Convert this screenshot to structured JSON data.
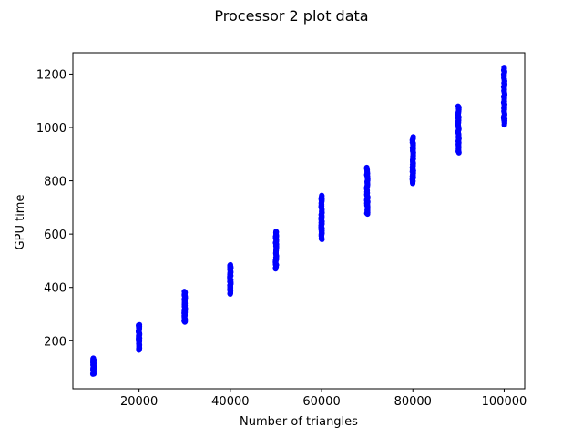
{
  "chart_data": {
    "type": "scatter",
    "title": "Processor 2 plot data",
    "xlabel": "Number of triangles",
    "ylabel": "GPU time",
    "xlim": [
      5500,
      104500
    ],
    "ylim": [
      20,
      1280
    ],
    "xticks": [
      20000,
      40000,
      60000,
      80000,
      100000
    ],
    "yticks": [
      200,
      400,
      600,
      800,
      1000,
      1200
    ],
    "grid": false,
    "marker_color": "#0000ff",
    "series": [
      {
        "clusters": [
          {
            "x": 10000,
            "y_min": 75,
            "y_max": 135
          },
          {
            "x": 20000,
            "y_min": 165,
            "y_max": 260
          },
          {
            "x": 30000,
            "y_min": 270,
            "y_max": 385
          },
          {
            "x": 40000,
            "y_min": 375,
            "y_max": 485
          },
          {
            "x": 50000,
            "y_min": 470,
            "y_max": 610
          },
          {
            "x": 60000,
            "y_min": 580,
            "y_max": 745
          },
          {
            "x": 70000,
            "y_min": 675,
            "y_max": 850
          },
          {
            "x": 80000,
            "y_min": 790,
            "y_max": 965
          },
          {
            "x": 90000,
            "y_min": 905,
            "y_max": 1080
          },
          {
            "x": 100000,
            "y_min": 1010,
            "y_max": 1225
          }
        ]
      }
    ]
  }
}
